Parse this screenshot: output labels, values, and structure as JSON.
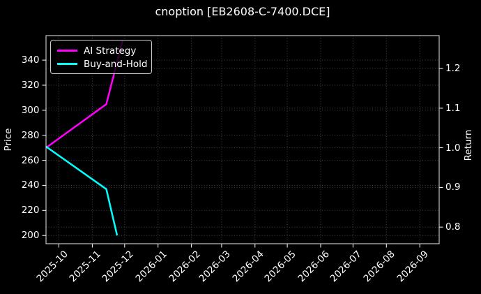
{
  "chart_data": {
    "type": "line",
    "title": "cnoption [EB2608-C-7400.DCE]",
    "ylabel_left": "Price",
    "ylabel_right": "Return",
    "x_tick_labels": [
      "2025-10",
      "2025-11",
      "2025-12",
      "2026-01",
      "2026-02",
      "2026-03",
      "2026-04",
      "2026-05",
      "2026-06",
      "2026-07",
      "2026-08",
      "2026-09"
    ],
    "x_range": [
      "2025-09-19",
      "2026-09-19"
    ],
    "left_axis": {
      "ticks": [
        200,
        220,
        240,
        260,
        280,
        300,
        320,
        340
      ],
      "range": [
        193.4,
        359.6
      ]
    },
    "right_axis": {
      "ticks": [
        0.8,
        0.9,
        1.0,
        1.1,
        1.2
      ],
      "range": [
        0.758,
        1.283
      ]
    },
    "grid": true,
    "legend_position": "upper left",
    "colors": {
      "background": "#000000",
      "text": "#ffffff",
      "grid": "#474747",
      "spine": "#e8e8e8",
      "ai_strategy": "#ff00ff",
      "buy_and_hold": "#00ffff"
    },
    "series": [
      {
        "name": "AI Strategy",
        "axis": "right",
        "color": "#ff00ff",
        "points": [
          [
            "2025-09-19",
            1.0
          ],
          [
            "2025-11-14",
            1.11
          ],
          [
            "2025-11-29",
            1.27
          ]
        ]
      },
      {
        "name": "Buy-and-Hold",
        "axis": "left",
        "color": "#00ffff",
        "points": [
          [
            "2025-09-19",
            271
          ],
          [
            "2025-11-14",
            237
          ],
          [
            "2025-11-24",
            200
          ]
        ]
      }
    ]
  }
}
